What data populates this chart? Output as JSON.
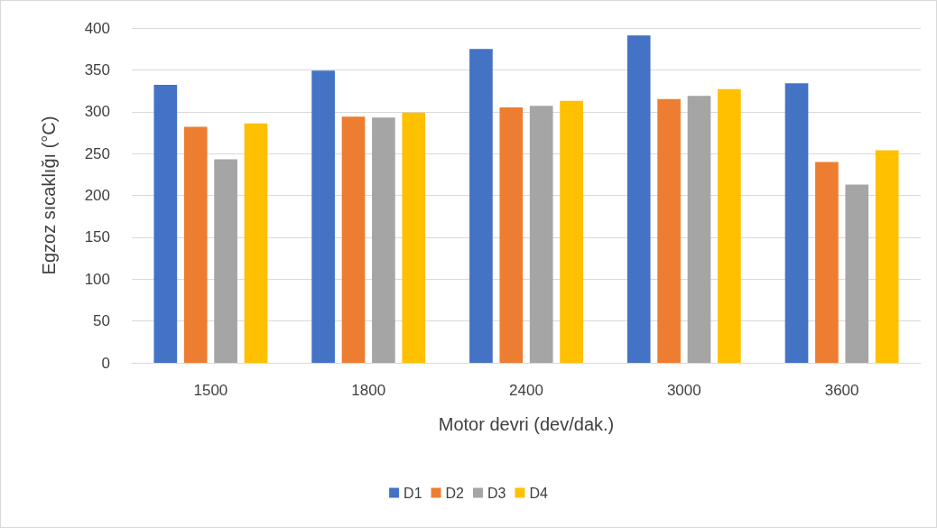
{
  "chart_data": {
    "type": "bar",
    "xlabel": "Motor devri (dev/dak.)",
    "ylabel": "Egzoz sıcaklığı (°C)",
    "categories": [
      "1500",
      "1800",
      "2400",
      "3000",
      "3600"
    ],
    "series": [
      {
        "name": "D1",
        "color": "#4472c4",
        "values": [
          332,
          349,
          375,
          391,
          334
        ]
      },
      {
        "name": "D2",
        "color": "#ed7d31",
        "values": [
          282,
          294,
          305,
          315,
          240
        ]
      },
      {
        "name": "D3",
        "color": "#a5a5a5",
        "values": [
          243,
          293,
          307,
          319,
          213
        ]
      },
      {
        "name": "D4",
        "color": "#ffc000",
        "values": [
          286,
          299,
          313,
          327,
          254
        ]
      }
    ],
    "ylim": [
      0,
      400
    ],
    "yticks": [
      0,
      50,
      100,
      150,
      200,
      250,
      300,
      350,
      400
    ],
    "grid": "y",
    "legend": "bottom"
  }
}
